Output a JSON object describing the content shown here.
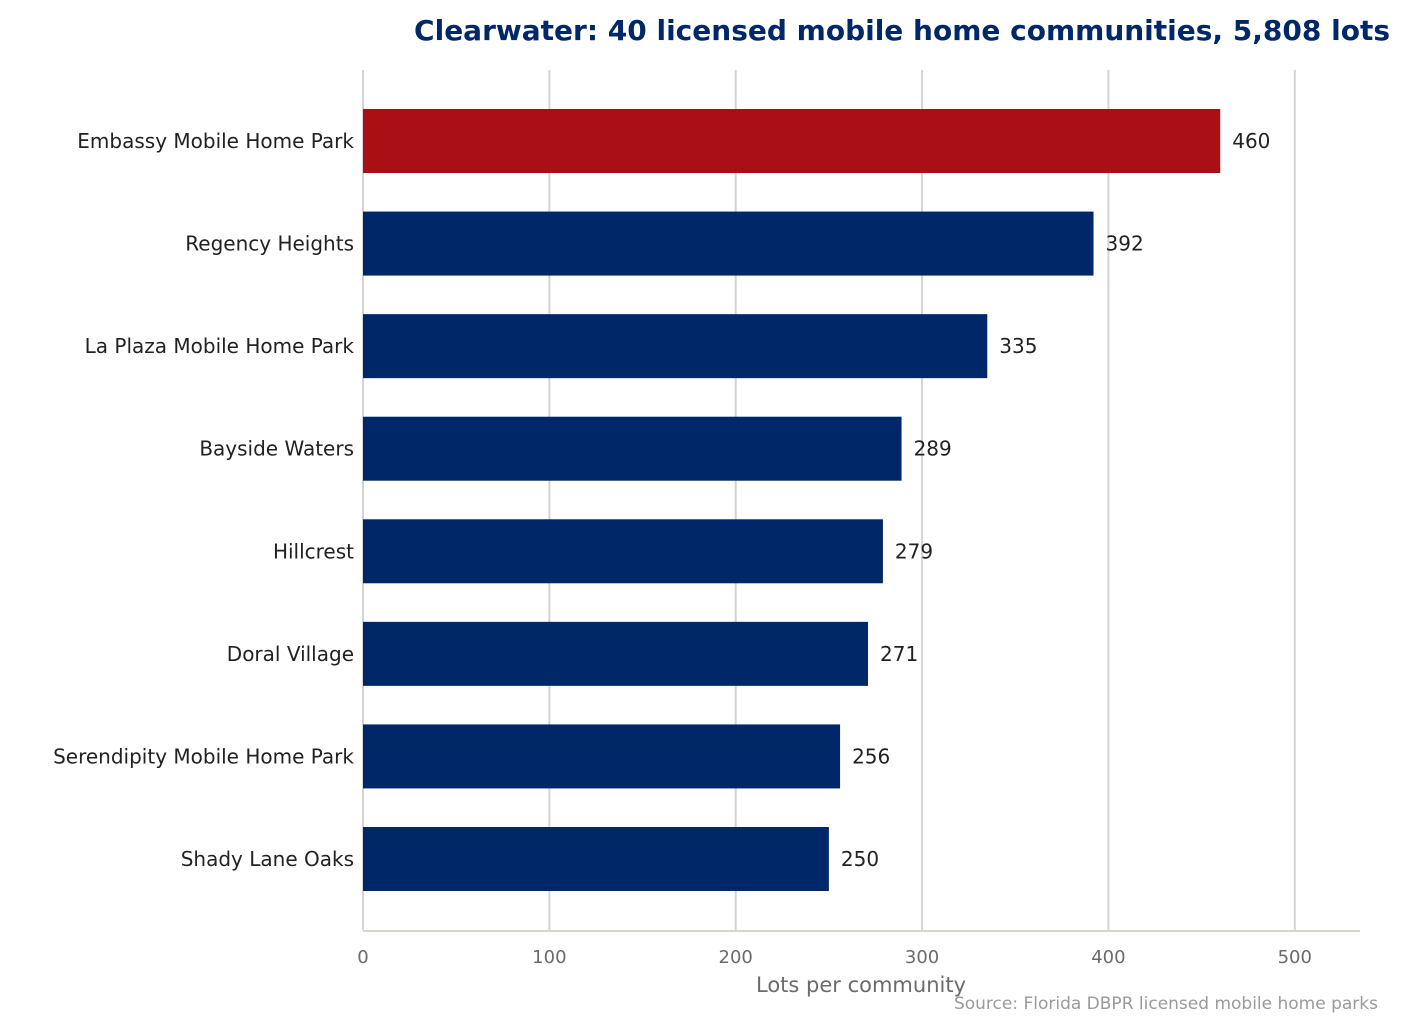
{
  "chart_data": {
    "type": "bar",
    "orientation": "horizontal",
    "title": "Clearwater: 40 licensed mobile home communities, 5,808 lots",
    "xlabel": "Lots per community",
    "ylabel": "",
    "source": "Source: Florida DBPR licensed mobile home parks",
    "categories": [
      "Embassy Mobile Home Park",
      "Regency Heights",
      "La Plaza Mobile Home Park",
      "Bayside Waters",
      "Hillcrest",
      "Doral Village",
      "Serendipity Mobile Home Park",
      "Shady Lane Oaks"
    ],
    "values": [
      460,
      392,
      335,
      289,
      279,
      271,
      256,
      250
    ],
    "xlim": [
      0,
      535
    ],
    "xticks": [
      0,
      100,
      200,
      300,
      400,
      500
    ],
    "grid": "vertical",
    "colors": {
      "highlight": "#a81016",
      "bar": "#002868",
      "title": "#002868",
      "grid": "#d4d4d4",
      "axis": "#d9d6c7"
    },
    "highlight_index": 0
  }
}
